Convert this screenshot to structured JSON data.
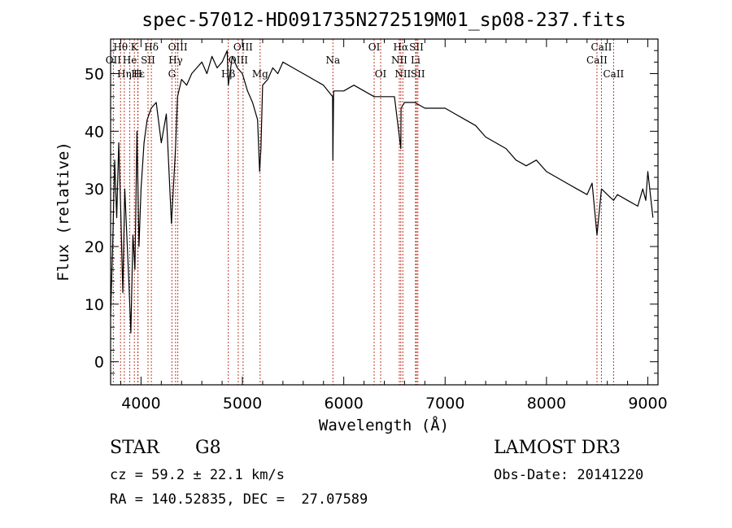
{
  "chart_data": {
    "type": "line",
    "title": "spec-57012-HD091735N272519M01_sp08-237.fits",
    "xlabel": "Wavelength (Å)",
    "ylabel": "Flux (relative)",
    "xlim": [
      3700,
      9100
    ],
    "ylim": [
      -4,
      56
    ],
    "xticks": [
      4000,
      5000,
      6000,
      7000,
      8000,
      9000
    ],
    "yticks": [
      0,
      10,
      20,
      30,
      40,
      50
    ],
    "series": [
      {
        "name": "flux",
        "x": [
          3700,
          3720,
          3740,
          3760,
          3780,
          3800,
          3820,
          3840,
          3860,
          3880,
          3900,
          3920,
          3940,
          3960,
          3980,
          4000,
          4030,
          4060,
          4100,
          4150,
          4200,
          4250,
          4300,
          4340,
          4360,
          4400,
          4450,
          4500,
          4550,
          4600,
          4650,
          4700,
          4750,
          4800,
          4850,
          4861,
          4900,
          4950,
          5000,
          5050,
          5100,
          5150,
          5170,
          5183,
          5200,
          5250,
          5300,
          5350,
          5400,
          5500,
          5600,
          5700,
          5800,
          5890,
          5893,
          5900,
          6000,
          6100,
          6200,
          6300,
          6400,
          6500,
          6563,
          6565,
          6600,
          6700,
          6800,
          6900,
          7000,
          7100,
          7200,
          7300,
          7400,
          7500,
          7600,
          7700,
          7800,
          7900,
          8000,
          8100,
          8200,
          8300,
          8400,
          8450,
          8498,
          8542,
          8600,
          8662,
          8700,
          8800,
          8900,
          8950,
          8980,
          9000,
          9050
        ],
        "y": [
          8,
          20,
          35,
          25,
          38,
          26,
          12,
          30,
          22,
          14,
          5,
          22,
          16,
          40,
          20,
          30,
          38,
          42,
          44,
          45,
          38,
          43,
          24,
          37,
          46,
          49,
          48,
          50,
          51,
          52,
          50,
          53,
          51,
          52,
          54,
          48,
          53,
          51,
          50,
          47,
          45,
          42,
          33,
          37,
          48,
          49,
          51,
          50,
          52,
          51,
          50,
          49,
          48,
          46,
          35,
          47,
          47,
          48,
          47,
          46,
          46,
          46,
          37,
          44,
          45,
          45,
          44,
          44,
          44,
          43,
          42,
          41,
          39,
          38,
          37,
          35,
          34,
          35,
          33,
          32,
          31,
          30,
          29,
          31,
          22,
          30,
          29,
          28,
          29,
          28,
          27,
          30,
          28,
          33,
          25
        ]
      }
    ],
    "spectral_lines": [
      {
        "name": "Hθ",
        "wavelength": 3798,
        "row": 1
      },
      {
        "name": "OII",
        "wavelength": 3727,
        "row": 2
      },
      {
        "name": "Hη",
        "wavelength": 3835,
        "row": 3
      },
      {
        "name": "K",
        "wavelength": 3934,
        "row": 1
      },
      {
        "name": "He",
        "wavelength": 3889,
        "row": 2
      },
      {
        "name": "Hε",
        "wavelength": 3970,
        "row": 3
      },
      {
        "name": "Hδ",
        "wavelength": 4102,
        "row": 1
      },
      {
        "name": "SII",
        "wavelength": 4069,
        "row": 2
      },
      {
        "name": "H",
        "wavelength": 3968,
        "row": 3
      },
      {
        "name": "OIII",
        "wavelength": 4363,
        "row": 1
      },
      {
        "name": "Hγ",
        "wavelength": 4341,
        "row": 2
      },
      {
        "name": "G",
        "wavelength": 4305,
        "row": 3
      },
      {
        "name": "OIII",
        "wavelength": 5007,
        "row": 1
      },
      {
        "name": "OIII",
        "wavelength": 4959,
        "row": 2
      },
      {
        "name": "Hβ",
        "wavelength": 4861,
        "row": 3
      },
      {
        "name": "Mg",
        "wavelength": 5175,
        "row": 3
      },
      {
        "name": "Na",
        "wavelength": 5893,
        "row": 2
      },
      {
        "name": "OI",
        "wavelength": 6300,
        "row": 1
      },
      {
        "name": "OI",
        "wavelength": 6364,
        "row": 3
      },
      {
        "name": "Hα",
        "wavelength": 6563,
        "row": 1
      },
      {
        "name": "NII",
        "wavelength": 6548,
        "row": 2
      },
      {
        "name": "NII",
        "wavelength": 6583,
        "row": 3
      },
      {
        "name": "SII",
        "wavelength": 6717,
        "row": 1
      },
      {
        "name": "Li",
        "wavelength": 6708,
        "row": 2
      },
      {
        "name": "SII",
        "wavelength": 6731,
        "row": 3
      },
      {
        "name": "CaII",
        "wavelength": 8542,
        "row": 1
      },
      {
        "name": "CaII",
        "wavelength": 8498,
        "row": 2
      },
      {
        "name": "CaII",
        "wavelength": 8662,
        "row": 3
      }
    ]
  },
  "info": {
    "object_class": "STAR",
    "subclass": "G8",
    "survey": "LAMOST DR3",
    "cz": "cz = 59.2 ± 22.1 km/s",
    "obs_date": "Obs-Date: 20141220",
    "coords": "RA = 140.52835, DEC =  27.07589"
  },
  "colors": {
    "line_marker": "#c0392b",
    "spectrum": "#000000"
  }
}
